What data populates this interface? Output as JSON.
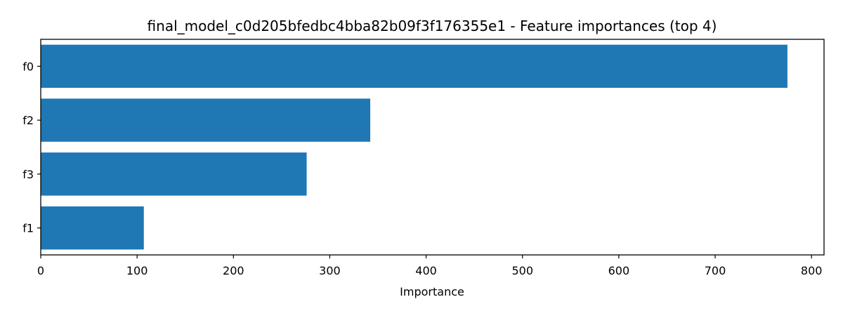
{
  "chart_data": {
    "type": "bar",
    "orientation": "horizontal",
    "title": "final_model_c0d205bfedbc4bba82b09f3f176355e1 - Feature importances (top 4)",
    "xlabel": "Importance",
    "ylabel": "",
    "categories": [
      "f0",
      "f2",
      "f3",
      "f1"
    ],
    "values": [
      775,
      342,
      276,
      107
    ],
    "xlim": [
      0,
      813
    ],
    "xticks": [
      0,
      100,
      200,
      300,
      400,
      500,
      600,
      700,
      800
    ],
    "xtick_labels": [
      "0",
      "100",
      "200",
      "300",
      "400",
      "500",
      "600",
      "700",
      "800"
    ],
    "bar_color": "#1f77b4",
    "grid": false,
    "legend": "none"
  }
}
